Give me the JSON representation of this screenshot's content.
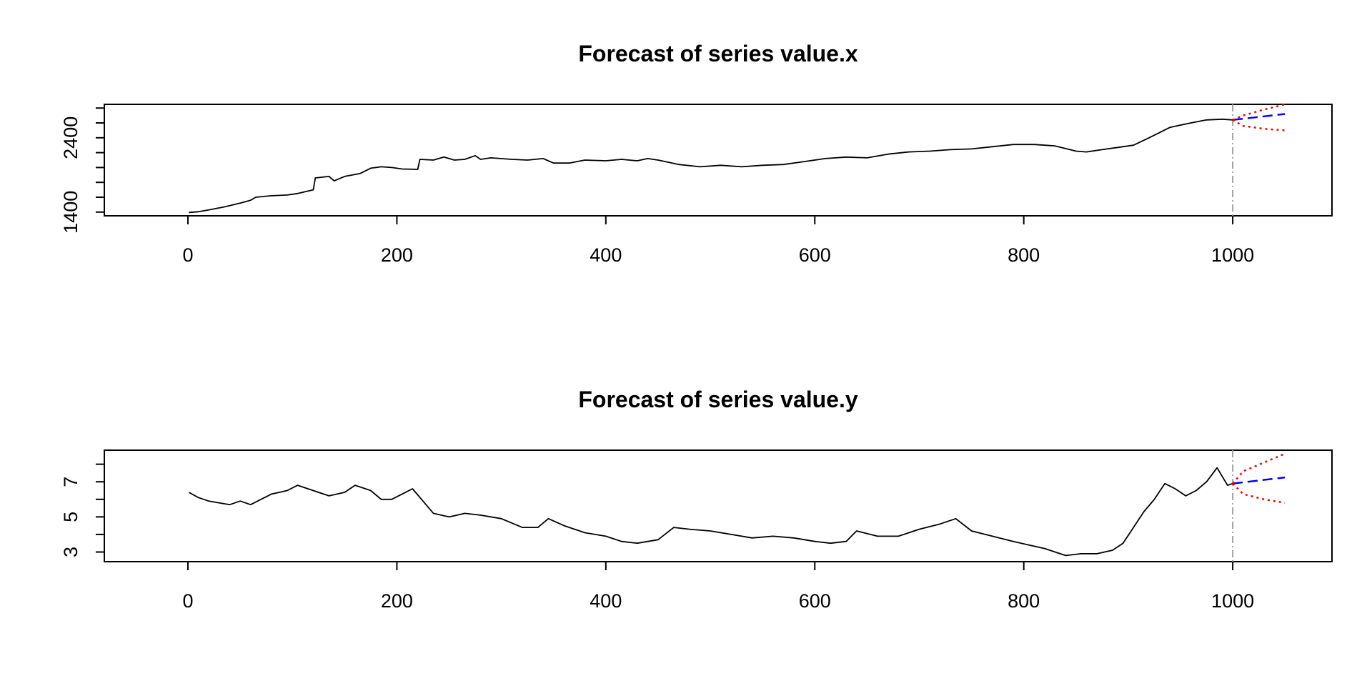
{
  "chart_data": [
    {
      "type": "line",
      "title": "Forecast of series value.x",
      "xlabel": "",
      "ylabel": "",
      "xlim": [
        -80,
        1095
      ],
      "ylim": [
        1350,
        2850
      ],
      "x_ticks": [
        0,
        200,
        400,
        600,
        800,
        1000
      ],
      "x_tick_labels": [
        "0",
        "200",
        "400",
        "600",
        "800",
        "1000"
      ],
      "y_ticks": [
        1400,
        1600,
        1800,
        2000,
        2200,
        2400,
        2600,
        2800
      ],
      "y_tick_labels": [
        "1400",
        "",
        "",
        "",
        "",
        "2400",
        "",
        ""
      ],
      "forecast_origin": 1000,
      "series": [
        {
          "values_xy": [
            [
              1,
              1395
            ],
            [
              10,
              1405
            ],
            [
              20,
              1430
            ],
            [
              35,
              1470
            ],
            [
              50,
              1520
            ],
            [
              60,
              1560
            ],
            [
              65,
              1600
            ],
            [
              80,
              1620
            ],
            [
              95,
              1630
            ],
            [
              105,
              1650
            ],
            [
              120,
              1700
            ],
            [
              122,
              1860
            ],
            [
              135,
              1880
            ],
            [
              140,
              1820
            ],
            [
              150,
              1880
            ],
            [
              165,
              1920
            ],
            [
              175,
              1990
            ],
            [
              185,
              2010
            ],
            [
              195,
              2000
            ],
            [
              205,
              1980
            ],
            [
              220,
              1975
            ],
            [
              222,
              2110
            ],
            [
              235,
              2100
            ],
            [
              245,
              2140
            ],
            [
              255,
              2100
            ],
            [
              265,
              2110
            ],
            [
              275,
              2160
            ],
            [
              280,
              2110
            ],
            [
              290,
              2130
            ],
            [
              310,
              2110
            ],
            [
              325,
              2100
            ],
            [
              340,
              2120
            ],
            [
              350,
              2060
            ],
            [
              365,
              2060
            ],
            [
              380,
              2100
            ],
            [
              400,
              2090
            ],
            [
              415,
              2110
            ],
            [
              430,
              2090
            ],
            [
              440,
              2120
            ],
            [
              450,
              2100
            ],
            [
              470,
              2040
            ],
            [
              490,
              2010
            ],
            [
              510,
              2030
            ],
            [
              530,
              2010
            ],
            [
              550,
              2030
            ],
            [
              570,
              2040
            ],
            [
              590,
              2080
            ],
            [
              610,
              2120
            ],
            [
              630,
              2140
            ],
            [
              650,
              2130
            ],
            [
              670,
              2180
            ],
            [
              690,
              2210
            ],
            [
              710,
              2220
            ],
            [
              730,
              2240
            ],
            [
              750,
              2250
            ],
            [
              770,
              2280
            ],
            [
              790,
              2310
            ],
            [
              810,
              2310
            ],
            [
              830,
              2290
            ],
            [
              850,
              2220
            ],
            [
              860,
              2210
            ],
            [
              875,
              2240
            ],
            [
              890,
              2270
            ],
            [
              905,
              2300
            ],
            [
              920,
              2400
            ],
            [
              940,
              2540
            ],
            [
              960,
              2600
            ],
            [
              975,
              2640
            ],
            [
              990,
              2650
            ],
            [
              1000,
              2640
            ]
          ],
          "color": "#000000"
        },
        {
          "name": "forecast",
          "values_xy": [
            [
              1000,
              2640
            ],
            [
              1050,
              2720
            ]
          ],
          "color": "#0000ff",
          "style": "dashed"
        },
        {
          "name": "upper",
          "values_xy": [
            [
              1000,
              2640
            ],
            [
              1010,
              2700
            ],
            [
              1030,
              2780
            ],
            [
              1050,
              2850
            ]
          ],
          "color": "#ff0000",
          "style": "dotted"
        },
        {
          "name": "lower",
          "values_xy": [
            [
              1000,
              2640
            ],
            [
              1010,
              2560
            ],
            [
              1030,
              2520
            ],
            [
              1050,
              2500
            ]
          ],
          "color": "#ff0000",
          "style": "dotted"
        }
      ]
    },
    {
      "type": "line",
      "title": "Forecast of series value.y",
      "xlabel": "",
      "ylabel": "",
      "xlim": [
        -80,
        1095
      ],
      "ylim": [
        2.45,
        8.8
      ],
      "x_ticks": [
        0,
        200,
        400,
        600,
        800,
        1000
      ],
      "x_tick_labels": [
        "0",
        "200",
        "400",
        "600",
        "800",
        "1000"
      ],
      "y_ticks": [
        3,
        4,
        5,
        6,
        7,
        8
      ],
      "y_tick_labels": [
        "3",
        "",
        "5",
        "",
        "7",
        ""
      ],
      "forecast_origin": 1000,
      "series": [
        {
          "values_xy": [
            [
              1,
              6.4
            ],
            [
              10,
              6.1
            ],
            [
              20,
              5.9
            ],
            [
              30,
              5.8
            ],
            [
              40,
              5.7
            ],
            [
              50,
              5.9
            ],
            [
              60,
              5.7
            ],
            [
              70,
              6.0
            ],
            [
              80,
              6.3
            ],
            [
              95,
              6.5
            ],
            [
              105,
              6.8
            ],
            [
              120,
              6.5
            ],
            [
              135,
              6.2
            ],
            [
              150,
              6.4
            ],
            [
              160,
              6.8
            ],
            [
              175,
              6.5
            ],
            [
              185,
              6.0
            ],
            [
              195,
              6.0
            ],
            [
              205,
              6.3
            ],
            [
              215,
              6.6
            ],
            [
              225,
              5.9
            ],
            [
              235,
              5.2
            ],
            [
              250,
              5.0
            ],
            [
              265,
              5.2
            ],
            [
              280,
              5.1
            ],
            [
              300,
              4.9
            ],
            [
              320,
              4.4
            ],
            [
              335,
              4.4
            ],
            [
              345,
              4.9
            ],
            [
              360,
              4.5
            ],
            [
              380,
              4.1
            ],
            [
              400,
              3.9
            ],
            [
              415,
              3.6
            ],
            [
              430,
              3.5
            ],
            [
              450,
              3.7
            ],
            [
              465,
              4.4
            ],
            [
              480,
              4.3
            ],
            [
              500,
              4.2
            ],
            [
              520,
              4.0
            ],
            [
              540,
              3.8
            ],
            [
              560,
              3.9
            ],
            [
              580,
              3.8
            ],
            [
              600,
              3.6
            ],
            [
              615,
              3.5
            ],
            [
              630,
              3.6
            ],
            [
              640,
              4.2
            ],
            [
              660,
              3.9
            ],
            [
              680,
              3.9
            ],
            [
              700,
              4.3
            ],
            [
              720,
              4.6
            ],
            [
              735,
              4.9
            ],
            [
              750,
              4.2
            ],
            [
              770,
              3.9
            ],
            [
              790,
              3.6
            ],
            [
              805,
              3.4
            ],
            [
              820,
              3.2
            ],
            [
              840,
              2.8
            ],
            [
              855,
              2.9
            ],
            [
              870,
              2.9
            ],
            [
              885,
              3.1
            ],
            [
              895,
              3.5
            ],
            [
              905,
              4.4
            ],
            [
              915,
              5.3
            ],
            [
              925,
              6.0
            ],
            [
              935,
              6.9
            ],
            [
              945,
              6.6
            ],
            [
              955,
              6.2
            ],
            [
              965,
              6.5
            ],
            [
              975,
              7.0
            ],
            [
              985,
              7.8
            ],
            [
              995,
              6.8
            ],
            [
              1000,
              6.9
            ]
          ],
          "color": "#000000"
        },
        {
          "name": "forecast",
          "values_xy": [
            [
              1000,
              6.9
            ],
            [
              1050,
              7.25
            ]
          ],
          "color": "#0000ff",
          "style": "dashed"
        },
        {
          "name": "upper",
          "values_xy": [
            [
              1000,
              6.9
            ],
            [
              1010,
              7.6
            ],
            [
              1030,
              8.1
            ],
            [
              1050,
              8.6
            ]
          ],
          "color": "#ff0000",
          "style": "dotted"
        },
        {
          "name": "lower",
          "values_xy": [
            [
              1000,
              6.9
            ],
            [
              1010,
              6.3
            ],
            [
              1030,
              6.0
            ],
            [
              1050,
              5.8
            ]
          ],
          "color": "#ff0000",
          "style": "dotted"
        }
      ]
    }
  ]
}
